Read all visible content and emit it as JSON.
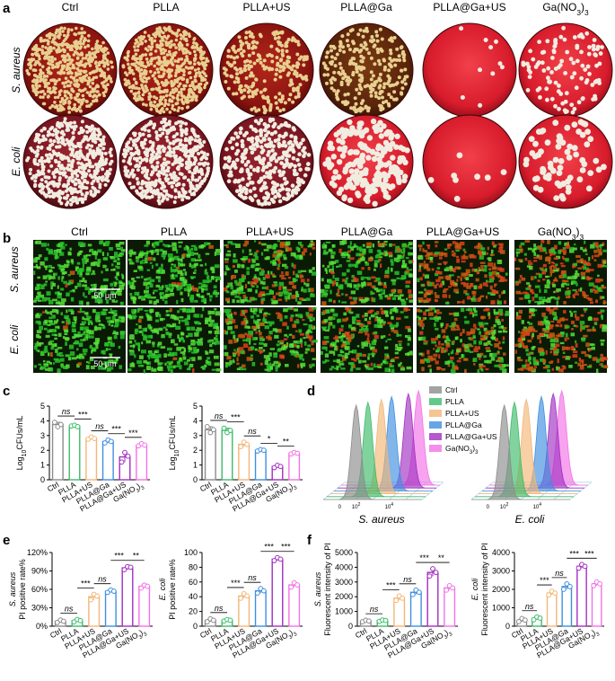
{
  "panel_letters": {
    "a": "a",
    "b": "b",
    "c": "c",
    "d": "d",
    "e": "e",
    "f": "f"
  },
  "groups": [
    "Ctrl",
    "PLLA",
    "PLLA+US",
    "PLLA@Ga",
    "PLLA@Ga+US",
    "Ga(NO3)3"
  ],
  "colors": {
    "Ctrl": "#8c8c8c",
    "PLLA": "#3dbb6a",
    "PLLA+US": "#f2b777",
    "PLLA@Ga": "#3f8fe0",
    "PLLA@Ga+US": "#a12fc2",
    "Ga(NO3)3": "#f272e6"
  },
  "bacteria": {
    "s_aureus": "S. aureus",
    "e_coli": "E. coli"
  },
  "scale_bar": "50 μm",
  "signif": {
    "ns": "ns",
    "s1": "*",
    "s2": "**",
    "s3": "***"
  },
  "legend_d": [
    "Ctrl",
    "PLLA",
    "PLLA+US",
    "PLLA@Ga",
    "PLLA@Ga+US",
    "Ga(NO3)3"
  ],
  "chart_data": [
    {
      "id": "c_saureus",
      "panel": "c",
      "type": "bar",
      "bacterium": "S. aureus",
      "ylabel": "Log10CFUs/mL",
      "ylim": [
        0,
        5
      ],
      "yticks": [
        0,
        1,
        2,
        3,
        4,
        5
      ],
      "categories": [
        "Ctrl",
        "PLLA",
        "PLLA+US",
        "PLLA@Ga",
        "PLLA@Ga+US",
        "Ga(NO3)3"
      ],
      "values": [
        3.75,
        3.65,
        2.8,
        2.6,
        1.55,
        2.35
      ],
      "points": [
        [
          3.9,
          3.6,
          3.75
        ],
        [
          3.65,
          3.7,
          3.6
        ],
        [
          2.75,
          2.9,
          2.8
        ],
        [
          2.5,
          2.7,
          2.6
        ],
        [
          1.2,
          1.85,
          1.6
        ],
        [
          2.3,
          2.45,
          2.35
        ]
      ],
      "annotations": [
        [
          "ns",
          0,
          1
        ],
        [
          "***",
          1,
          2
        ],
        [
          "ns",
          2,
          3
        ],
        [
          "***",
          3,
          4
        ],
        [
          "***",
          4,
          5
        ]
      ]
    },
    {
      "id": "c_ecoli",
      "panel": "c",
      "type": "bar",
      "bacterium": "E. coli",
      "ylabel": "Log10CFUs/mL",
      "ylim": [
        0,
        5
      ],
      "yticks": [
        0,
        1,
        2,
        3,
        4,
        5
      ],
      "categories": [
        "Ctrl",
        "PLLA",
        "PLLA+US",
        "PLLA@Ga",
        "PLLA@Ga+US",
        "Ga(NO3)3"
      ],
      "values": [
        3.4,
        3.35,
        2.4,
        2.0,
        0.9,
        1.8
      ],
      "points": [
        [
          3.6,
          3.2,
          3.4
        ],
        [
          3.5,
          3.2,
          3.35
        ],
        [
          2.25,
          2.55,
          2.4
        ],
        [
          1.95,
          2.05,
          2.0
        ],
        [
          0.82,
          0.98,
          0.9
        ],
        [
          1.75,
          1.85,
          1.8
        ]
      ],
      "annotations": [
        [
          "ns",
          0,
          1
        ],
        [
          "***",
          1,
          2
        ],
        [
          "ns",
          2,
          3
        ],
        [
          "*",
          3,
          4
        ],
        [
          "**",
          4,
          5
        ]
      ]
    },
    {
      "id": "e_saureus",
      "panel": "e",
      "type": "bar",
      "bacterium": "S. aureus",
      "ylabel": "PI positive rate%",
      "ylim": [
        0,
        120
      ],
      "yticks": [
        0,
        30,
        60,
        90,
        120
      ],
      "yticklabels": [
        "0%",
        "30%",
        "60%",
        "90%",
        "120%"
      ],
      "categories": [
        "Ctrl",
        "PLLA",
        "PLLA+US",
        "PLLA@Ga",
        "PLLA@Ga+US",
        "Ga(NO3)3"
      ],
      "values": [
        8,
        9,
        48,
        57,
        95,
        65
      ],
      "points": [
        [
          6,
          10,
          8
        ],
        [
          7,
          11,
          9
        ],
        [
          43,
          52,
          49
        ],
        [
          55,
          59,
          57
        ],
        [
          92,
          97,
          96
        ],
        [
          62,
          67,
          65
        ]
      ],
      "annotations": [
        [
          "ns",
          0,
          1
        ],
        [
          "***",
          1,
          2
        ],
        [
          "ns",
          2,
          3
        ],
        [
          "***",
          3,
          4
        ],
        [
          "**",
          4,
          5
        ]
      ]
    },
    {
      "id": "e_ecoli",
      "panel": "e",
      "type": "bar",
      "bacterium": "E. coli",
      "ylabel": "PI positive rate%",
      "ylim": [
        0,
        100
      ],
      "yticks": [
        0,
        20,
        40,
        60,
        80,
        100
      ],
      "yticklabels": [
        "0",
        "20",
        "40",
        "60",
        "80",
        "100"
      ],
      "categories": [
        "Ctrl",
        "PLLA",
        "PLLA+US",
        "PLLA@Ga",
        "PLLA@Ga+US",
        "Ga(NO3)3"
      ],
      "values": [
        8,
        8,
        41,
        48,
        91,
        56
      ],
      "points": [
        [
          6,
          10,
          8
        ],
        [
          7,
          9,
          8
        ],
        [
          38,
          44,
          41
        ],
        [
          45,
          51,
          48
        ],
        [
          89,
          93,
          91
        ],
        [
          53,
          59,
          56
        ]
      ],
      "annotations": [
        [
          "ns",
          0,
          1
        ],
        [
          "***",
          1,
          2
        ],
        [
          "ns",
          2,
          3
        ],
        [
          "***",
          3,
          4
        ],
        [
          "***",
          4,
          5
        ]
      ]
    },
    {
      "id": "f_saureus",
      "panel": "f",
      "type": "bar",
      "bacterium": "S. aureus",
      "ylabel": "Fluorescent intensity of PI",
      "ylim": [
        0,
        5000
      ],
      "yticks": [
        0,
        1000,
        2000,
        3000,
        4000,
        5000
      ],
      "categories": [
        "Ctrl",
        "PLLA",
        "PLLA+US",
        "PLLA@Ga",
        "PLLA@Ga+US",
        "Ga(NO3)3"
      ],
      "values": [
        350,
        380,
        1900,
        2300,
        3650,
        2600
      ],
      "points": [
        [
          300,
          400,
          350
        ],
        [
          330,
          420,
          390
        ],
        [
          1750,
          2050,
          1900
        ],
        [
          2150,
          2450,
          2300
        ],
        [
          3400,
          3900,
          3650
        ],
        [
          2450,
          2750,
          2600
        ]
      ],
      "annotations": [
        [
          "ns",
          0,
          1
        ],
        [
          "***",
          1,
          2
        ],
        [
          "ns",
          2,
          3
        ],
        [
          "***",
          3,
          4
        ],
        [
          "**",
          4,
          5
        ]
      ]
    },
    {
      "id": "f_ecoli",
      "panel": "f",
      "type": "bar",
      "bacterium": "E. coli",
      "ylabel": "Fluorescent intensity of PI",
      "ylim": [
        0,
        4000
      ],
      "yticks": [
        0,
        1000,
        2000,
        3000,
        4000
      ],
      "categories": [
        "Ctrl",
        "PLLA",
        "PLLA+US",
        "PLLA@Ga",
        "PLLA@Ga+US",
        "Ga(NO3)3"
      ],
      "values": [
        330,
        430,
        1800,
        2150,
        3250,
        2300
      ],
      "points": [
        [
          250,
          420,
          330
        ],
        [
          350,
          500,
          440
        ],
        [
          1700,
          1900,
          1800
        ],
        [
          2000,
          2300,
          2150
        ],
        [
          3150,
          3350,
          3250
        ],
        [
          2200,
          2400,
          2300
        ]
      ],
      "annotations": [
        [
          "ns",
          0,
          1
        ],
        [
          "***",
          1,
          2
        ],
        [
          "ns",
          2,
          3
        ],
        [
          "***",
          3,
          4
        ],
        [
          "***",
          4,
          5
        ]
      ]
    },
    {
      "id": "d_saureus",
      "panel": "d",
      "type": "area",
      "bacterium": "S. aureus",
      "xticklabels": [
        "0",
        "10^2",
        "10^4"
      ],
      "series": [
        {
          "name": "Ctrl",
          "peak": 2.0
        },
        {
          "name": "PLLA",
          "peak": 2.5
        },
        {
          "name": "PLLA+US",
          "peak": 3.1
        },
        {
          "name": "PLLA@Ga",
          "peak": 3.5
        },
        {
          "name": "PLLA@Ga+US",
          "peak": 4.3
        },
        {
          "name": "Ga(NO3)3",
          "peak": 4.7
        }
      ]
    },
    {
      "id": "d_ecoli",
      "panel": "d",
      "type": "area",
      "bacterium": "E. coli",
      "xticklabels": [
        "0",
        "10^2",
        "10^4"
      ],
      "series": [
        {
          "name": "Ctrl",
          "peak": 2.0
        },
        {
          "name": "PLLA",
          "peak": 2.4
        },
        {
          "name": "PLLA+US",
          "peak": 2.9
        },
        {
          "name": "PLLA@Ga",
          "peak": 3.6
        },
        {
          "name": "PLLA@Ga+US",
          "peak": 4.1
        },
        {
          "name": "Ga(NO3)3",
          "peak": 4.4
        }
      ]
    }
  ]
}
